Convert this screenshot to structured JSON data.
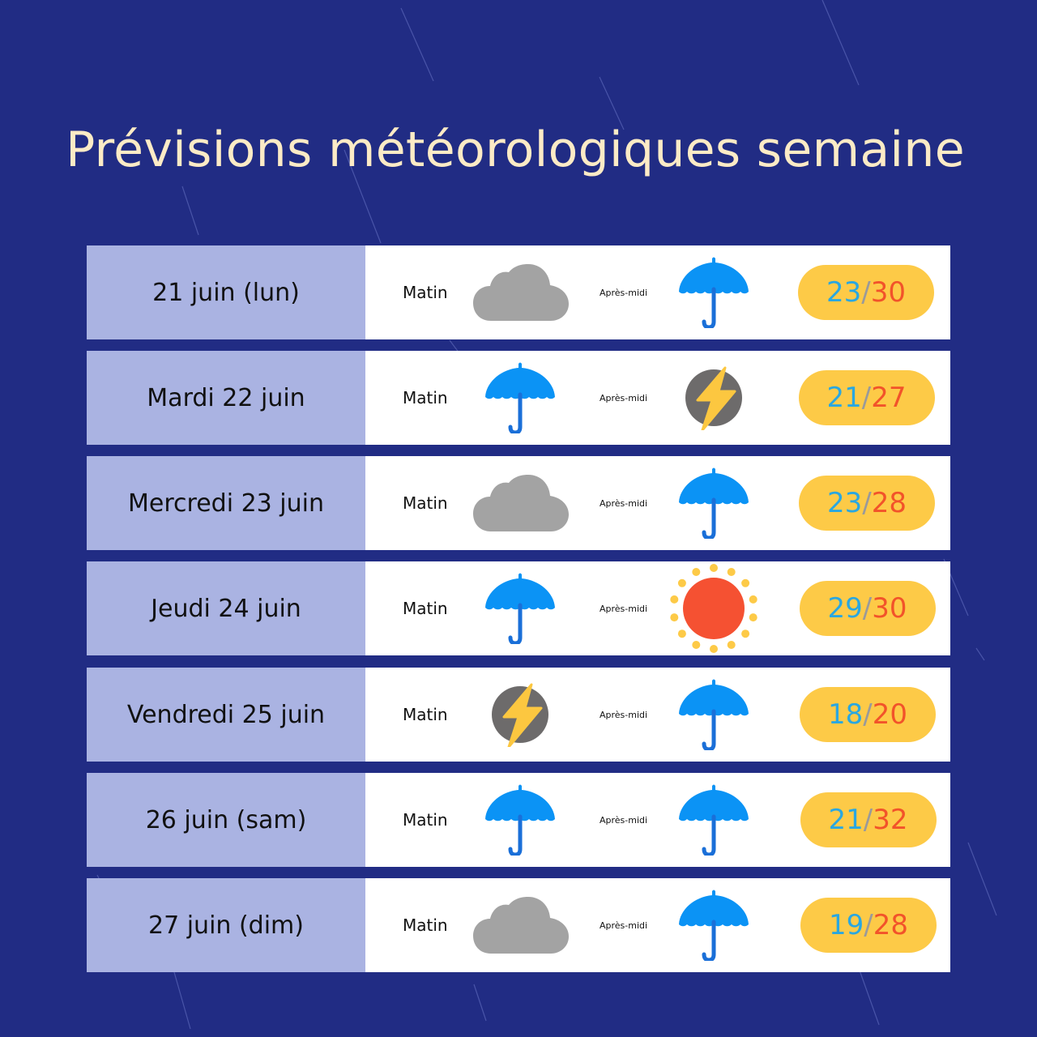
{
  "title": "Prévisions météorologiques semaine",
  "colors": {
    "background": "#212c84",
    "title": "#fcebc6",
    "day_cell": "#aab3e2",
    "pill": "#fdca47",
    "temp_min": "#2aa7e0",
    "temp_max": "#f2532a",
    "separator": "#9a9a9a"
  },
  "labels": {
    "morning": "Matin",
    "afternoon": "Après-midi",
    "sep": "/"
  },
  "days": [
    {
      "day": "21 juin (lun)",
      "morning_icon": "cloud-icon",
      "afternoon_icon": "umbrella-icon",
      "min": "23",
      "max": "30"
    },
    {
      "day": "Mardi 22 juin",
      "morning_icon": "umbrella-icon",
      "afternoon_icon": "lightning-icon",
      "min": "21",
      "max": "27"
    },
    {
      "day": "Mercredi 23 juin",
      "morning_icon": "cloud-icon",
      "afternoon_icon": "umbrella-icon",
      "min": "23",
      "max": "28"
    },
    {
      "day": "Jeudi 24 juin",
      "morning_icon": "umbrella-icon",
      "afternoon_icon": "sun-icon",
      "min": "29",
      "max": "30"
    },
    {
      "day": "Vendredi 25 juin",
      "morning_icon": "lightning-icon",
      "afternoon_icon": "umbrella-icon",
      "min": "18",
      "max": "20"
    },
    {
      "day": "26 juin (sam)",
      "morning_icon": "umbrella-icon",
      "afternoon_icon": "umbrella-icon",
      "min": "21",
      "max": "32"
    },
    {
      "day": "27 juin (dim)",
      "morning_icon": "cloud-icon",
      "afternoon_icon": "umbrella-icon",
      "min": "19",
      "max": "28"
    }
  ]
}
